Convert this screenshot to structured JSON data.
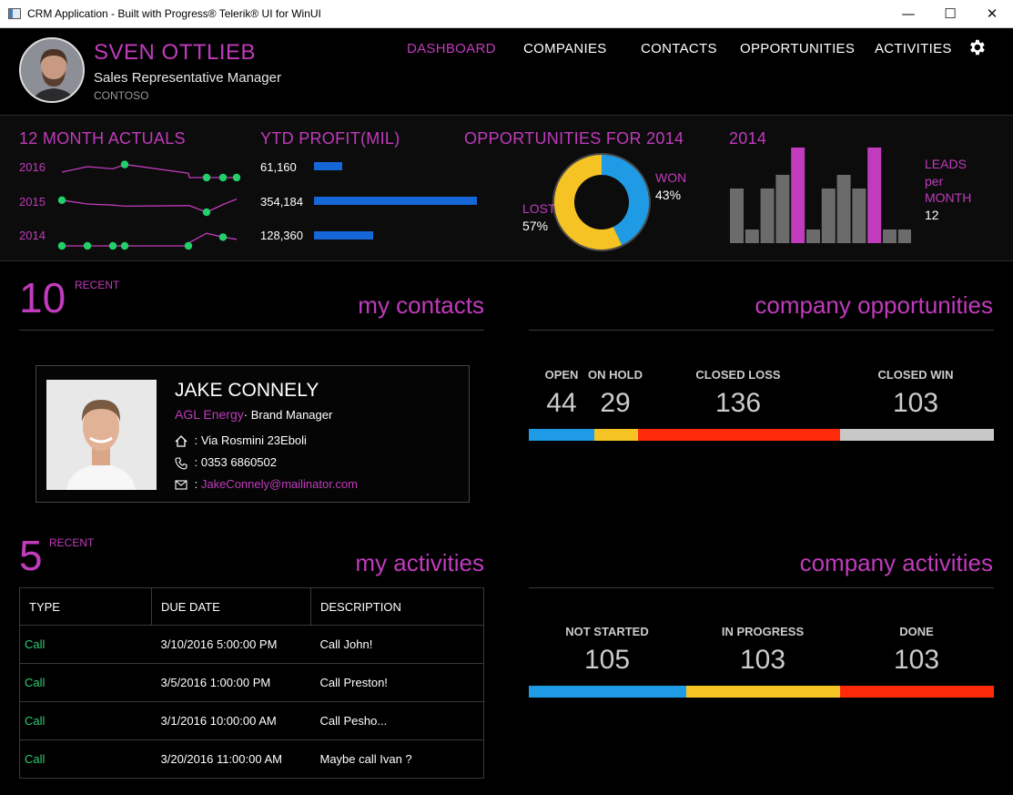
{
  "window": {
    "title": "CRM Application - Built with Progress® Telerik® UI for WinUI",
    "minimize": "—",
    "maximize": "☐",
    "close": "✕"
  },
  "user": {
    "name": "SVEN OTTLIEB",
    "role": "Sales Representative Manager",
    "company": "CONTOSO"
  },
  "nav": {
    "dashboard": "DASHBOARD",
    "companies": "COMPANIES",
    "contacts": "CONTACTS",
    "opportunities": "OPPORTUNITIES",
    "activities": "ACTIVITIES"
  },
  "kpi": {
    "actuals": {
      "title": "12 MONTH ACTUALS",
      "rows": [
        "2016",
        "2015",
        "2014"
      ]
    },
    "profit": {
      "title": "YTD PROFIT(MIL)",
      "rows": [
        {
          "label": "61,160",
          "value": 61160
        },
        {
          "label": "354,184",
          "value": 354184
        },
        {
          "label": "128,360",
          "value": 128360
        }
      ]
    },
    "opportunities": {
      "title": "OPPORTUNITIES FOR 2014",
      "lost_label": "LOST",
      "lost_pct": "57%",
      "won_label": "WON",
      "won_pct": "43%",
      "colors": {
        "lost": "#f6c324",
        "won": "#1f9be6"
      }
    },
    "leads": {
      "title": "2014",
      "label_line1": "LEADS",
      "label_line2": "per",
      "label_line3": "MONTH",
      "value": "12",
      "colors": {
        "normal": "#6b6b6b",
        "highlight": "#c13bbd"
      }
    }
  },
  "chart_data": [
    {
      "type": "line",
      "title": "12 MONTH ACTUALS",
      "series": [
        {
          "name": "2016",
          "values": [
            2,
            3,
            2.6,
            3.4,
            1.8,
            1,
            1,
            1,
            1
          ]
        },
        {
          "name": "2015",
          "values": [
            3.2,
            2.5,
            2.3,
            2.1,
            2.2,
            2.2,
            1,
            2.4,
            3.4
          ]
        },
        {
          "name": "2014",
          "values": [
            1,
            1,
            1,
            1,
            1,
            1.6,
            3.3,
            2.6,
            2.2
          ]
        }
      ]
    },
    {
      "type": "bar",
      "title": "YTD PROFIT(MIL)",
      "categories": [
        "61,160",
        "354,184",
        "128,360"
      ],
      "values": [
        61160,
        354184,
        128360
      ]
    },
    {
      "type": "pie",
      "title": "OPPORTUNITIES FOR 2014",
      "categories": [
        "LOST",
        "WON"
      ],
      "values": [
        57,
        43
      ]
    },
    {
      "type": "bar",
      "title": "2014",
      "categories": [
        "1",
        "2",
        "3",
        "4",
        "5",
        "6",
        "7",
        "8",
        "9",
        "10",
        "11",
        "12"
      ],
      "values": [
        6,
        1.5,
        6,
        7.5,
        10.5,
        1.5,
        6,
        7.5,
        6,
        10.5,
        1.5,
        1.5
      ],
      "highlight": [
        4,
        9
      ]
    }
  ],
  "contacts": {
    "count": "10",
    "recent": "RECENT",
    "title": "my contacts",
    "card": {
      "name": "JAKE CONNELY",
      "company": "AGL Energy",
      "separator": "· ",
      "position": "Brand Manager",
      "address_prefix": " : ",
      "address": "Via Rosmini 23Eboli",
      "phone_prefix": " : ",
      "phone": "0353 6860502",
      "email_prefix": " : ",
      "email": "JakeConnely@mailinator.com"
    }
  },
  "activities": {
    "count": "5",
    "recent": "RECENT",
    "title": "my activities",
    "columns": [
      "TYPE",
      "DUE DATE",
      "DESCRIPTION"
    ],
    "rows": [
      {
        "type": "Call",
        "due": "3/10/2016 5:00:00 PM",
        "desc": "Call John!"
      },
      {
        "type": "Call",
        "due": "3/5/2016 1:00:00 PM",
        "desc": "Call Preston!"
      },
      {
        "type": "Call",
        "due": "3/1/2016 10:00:00 AM",
        "desc": "Call Pesho..."
      },
      {
        "type": "Call",
        "due": "3/20/2016 11:00:00 AM",
        "desc": "Maybe call Ivan ?"
      }
    ]
  },
  "company_opportunities": {
    "title": "company opportunities",
    "stats": [
      {
        "label": "OPEN",
        "value": "44",
        "num": 44,
        "color": "#1f9be6"
      },
      {
        "label": "ON HOLD",
        "value": "29",
        "num": 29,
        "color": "#f6c324"
      },
      {
        "label": "CLOSED LOSS",
        "value": "136",
        "num": 136,
        "color": "#ff2a0a"
      },
      {
        "label": "CLOSED WIN",
        "value": "103",
        "num": 103,
        "color": "#c8c8c8"
      }
    ]
  },
  "company_activities": {
    "title": "company activities",
    "stats": [
      {
        "label": "NOT STARTED",
        "value": "105",
        "num": 105,
        "color": "#1f9be6"
      },
      {
        "label": "IN PROGRESS",
        "value": "103",
        "num": 103,
        "color": "#f6c324"
      },
      {
        "label": "DONE",
        "value": "103",
        "num": 103,
        "color": "#ff2a0a"
      }
    ]
  }
}
